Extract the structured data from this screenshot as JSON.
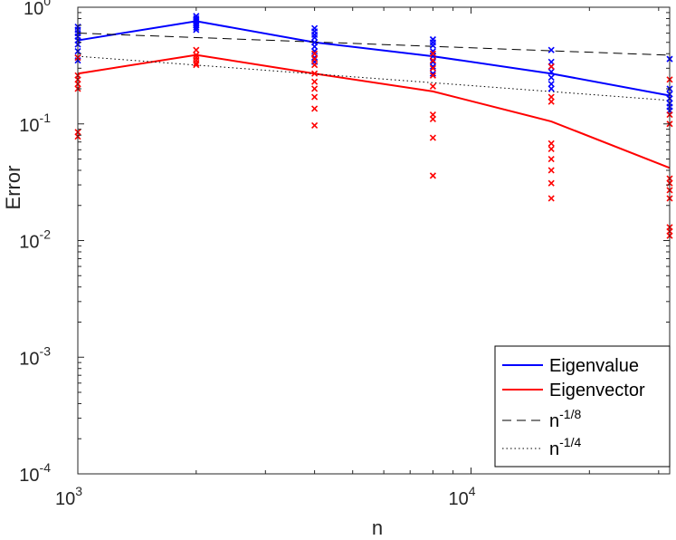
{
  "chart_data": {
    "type": "line",
    "title": "",
    "xlabel": "n",
    "ylabel": "Error",
    "xscale": "log",
    "yscale": "log",
    "xlim": [
      1000,
      32000
    ],
    "ylim": [
      0.0001,
      1
    ],
    "x_ticks": [
      {
        "value": 1000,
        "base": "10",
        "exp": "3"
      },
      {
        "value": 10000,
        "base": "10",
        "exp": "4"
      }
    ],
    "y_ticks": [
      {
        "value": 1,
        "base": "10",
        "exp": "0"
      },
      {
        "value": 0.1,
        "base": "10",
        "exp": "-1"
      },
      {
        "value": 0.01,
        "base": "10",
        "exp": "-2"
      },
      {
        "value": 0.001,
        "base": "10",
        "exp": "-3"
      },
      {
        "value": 0.0001,
        "base": "10",
        "exp": "-4"
      }
    ],
    "legend_position": "bottom-right",
    "series": [
      {
        "name": "Eigenvalue",
        "legend_label": "Eigenvalue",
        "color": "#0000ff",
        "style": "solid",
        "x": [
          1000,
          2000,
          4000,
          8000,
          16000,
          32000
        ],
        "values": [
          0.52,
          0.76,
          0.5,
          0.38,
          0.27,
          0.175
        ]
      },
      {
        "name": "Eigenvector",
        "legend_label": "Eigenvector",
        "color": "#ff0000",
        "style": "solid",
        "x": [
          1000,
          2000,
          4000,
          8000,
          16000,
          32000
        ],
        "values": [
          0.27,
          0.39,
          0.27,
          0.19,
          0.105,
          0.042
        ]
      },
      {
        "name": "n^-1/8",
        "legend_base": "n",
        "legend_exp": "-1/8",
        "color": "#000000",
        "style": "dashed",
        "x": [
          1000,
          32000
        ],
        "values": [
          0.6,
          0.388
        ]
      },
      {
        "name": "n^-1/4",
        "legend_base": "n",
        "legend_exp": "-1/4",
        "color": "#000000",
        "style": "dotted",
        "x": [
          1000,
          32000
        ],
        "values": [
          0.38,
          0.159
        ]
      }
    ],
    "scatter": [
      {
        "name": "Eigenvalue samples",
        "color": "#0000ff",
        "points": [
          [
            1000,
            0.68
          ],
          [
            1000,
            0.64
          ],
          [
            1000,
            0.6
          ],
          [
            1000,
            0.56
          ],
          [
            1000,
            0.52
          ],
          [
            1000,
            0.48
          ],
          [
            1000,
            0.42
          ],
          [
            1000,
            0.37
          ],
          [
            1000,
            0.35
          ],
          [
            2000,
            0.84
          ],
          [
            2000,
            0.8
          ],
          [
            2000,
            0.78
          ],
          [
            2000,
            0.75
          ],
          [
            2000,
            0.72
          ],
          [
            2000,
            0.7
          ],
          [
            2000,
            0.67
          ],
          [
            2000,
            0.64
          ],
          [
            4000,
            0.66
          ],
          [
            4000,
            0.62
          ],
          [
            4000,
            0.58
          ],
          [
            4000,
            0.55
          ],
          [
            4000,
            0.5
          ],
          [
            4000,
            0.46
          ],
          [
            4000,
            0.42
          ],
          [
            4000,
            0.37
          ],
          [
            4000,
            0.34
          ],
          [
            8000,
            0.53
          ],
          [
            8000,
            0.5
          ],
          [
            8000,
            0.47
          ],
          [
            8000,
            0.42
          ],
          [
            8000,
            0.38
          ],
          [
            8000,
            0.34
          ],
          [
            8000,
            0.31
          ],
          [
            8000,
            0.27
          ],
          [
            16000,
            0.43
          ],
          [
            16000,
            0.34
          ],
          [
            16000,
            0.31
          ],
          [
            16000,
            0.28
          ],
          [
            16000,
            0.25
          ],
          [
            16000,
            0.22
          ],
          [
            16000,
            0.2
          ],
          [
            32000,
            0.36
          ],
          [
            32000,
            0.2
          ],
          [
            32000,
            0.18
          ],
          [
            32000,
            0.165
          ],
          [
            32000,
            0.15
          ],
          [
            32000,
            0.14
          ],
          [
            32000,
            0.13
          ]
        ]
      },
      {
        "name": "Eigenvector samples",
        "color": "#ff0000",
        "points": [
          [
            1000,
            0.37
          ],
          [
            1000,
            0.26
          ],
          [
            1000,
            0.24
          ],
          [
            1000,
            0.22
          ],
          [
            1000,
            0.2
          ],
          [
            1000,
            0.085
          ],
          [
            1000,
            0.078
          ],
          [
            2000,
            0.43
          ],
          [
            2000,
            0.39
          ],
          [
            2000,
            0.37
          ],
          [
            2000,
            0.35
          ],
          [
            2000,
            0.33
          ],
          [
            2000,
            0.32
          ],
          [
            4000,
            0.4
          ],
          [
            4000,
            0.36
          ],
          [
            4000,
            0.32
          ],
          [
            4000,
            0.27
          ],
          [
            4000,
            0.23
          ],
          [
            4000,
            0.2
          ],
          [
            4000,
            0.17
          ],
          [
            4000,
            0.135
          ],
          [
            4000,
            0.097
          ],
          [
            8000,
            0.4
          ],
          [
            8000,
            0.35
          ],
          [
            8000,
            0.3
          ],
          [
            8000,
            0.26
          ],
          [
            8000,
            0.21
          ],
          [
            8000,
            0.12
          ],
          [
            8000,
            0.11
          ],
          [
            8000,
            0.076
          ],
          [
            8000,
            0.036
          ],
          [
            16000,
            0.31
          ],
          [
            16000,
            0.17
          ],
          [
            16000,
            0.155
          ],
          [
            16000,
            0.068
          ],
          [
            16000,
            0.061
          ],
          [
            16000,
            0.05
          ],
          [
            16000,
            0.04
          ],
          [
            16000,
            0.031
          ],
          [
            16000,
            0.023
          ],
          [
            32000,
            0.24
          ],
          [
            32000,
            0.12
          ],
          [
            32000,
            0.1
          ],
          [
            32000,
            0.034
          ],
          [
            32000,
            0.031
          ],
          [
            32000,
            0.027
          ],
          [
            32000,
            0.023
          ],
          [
            32000,
            0.013
          ],
          [
            32000,
            0.012
          ],
          [
            32000,
            0.011
          ]
        ]
      }
    ]
  }
}
